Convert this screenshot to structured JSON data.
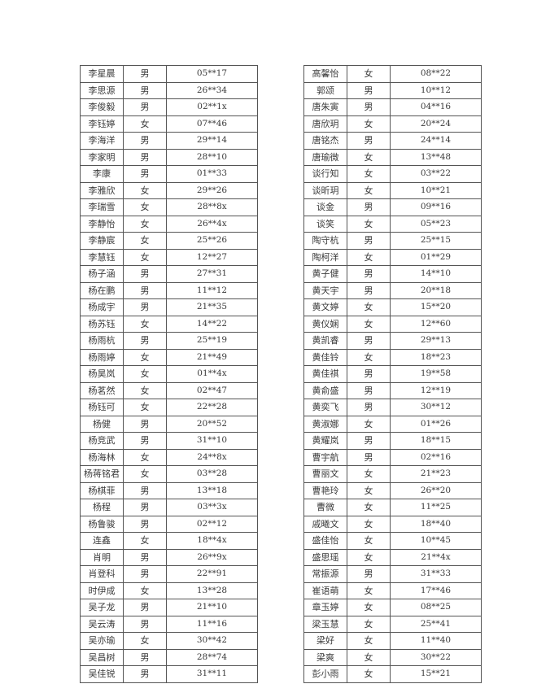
{
  "left_table": [
    [
      "李星晨",
      "男",
      "05**17"
    ],
    [
      "李思源",
      "男",
      "26**34"
    ],
    [
      "李俊毅",
      "男",
      "02**1x"
    ],
    [
      "李钰婷",
      "女",
      "07**46"
    ],
    [
      "李海洋",
      "男",
      "29**14"
    ],
    [
      "李家明",
      "男",
      "28**10"
    ],
    [
      "李康",
      "男",
      "01**33"
    ],
    [
      "李雅欣",
      "女",
      "29**26"
    ],
    [
      "李瑞雪",
      "女",
      "28**8x"
    ],
    [
      "李静怡",
      "女",
      "26**4x"
    ],
    [
      "李静宸",
      "女",
      "25**26"
    ],
    [
      "李慧钰",
      "女",
      "12**27"
    ],
    [
      "杨子涵",
      "男",
      "27**31"
    ],
    [
      "杨在鹏",
      "男",
      "11**12"
    ],
    [
      "杨成宇",
      "男",
      "21**35"
    ],
    [
      "杨苏钰",
      "女",
      "14**22"
    ],
    [
      "杨雨杭",
      "男",
      "25**19"
    ],
    [
      "杨雨婷",
      "女",
      "21**49"
    ],
    [
      "杨昊岚",
      "女",
      "01**4x"
    ],
    [
      "杨茗然",
      "女",
      "02**47"
    ],
    [
      "杨钰可",
      "女",
      "22**28"
    ],
    [
      "杨健",
      "男",
      "20**52"
    ],
    [
      "杨竞武",
      "男",
      "31**10"
    ],
    [
      "杨海林",
      "女",
      "24**8x"
    ],
    [
      "杨蒋铭君",
      "女",
      "03**28"
    ],
    [
      "杨棋菲",
      "男",
      "13**18"
    ],
    [
      "杨程",
      "男",
      "03**3x"
    ],
    [
      "杨鲁骏",
      "男",
      "02**12"
    ],
    [
      "连鑫",
      "女",
      "18**4x"
    ],
    [
      "肖明",
      "男",
      "26**9x"
    ],
    [
      "肖登科",
      "男",
      "22**91"
    ],
    [
      "时伊成",
      "女",
      "13**28"
    ],
    [
      "吴子龙",
      "男",
      "21**10"
    ],
    [
      "吴云涛",
      "男",
      "11**16"
    ],
    [
      "吴亦瑜",
      "女",
      "30**42"
    ],
    [
      "吴昌树",
      "男",
      "28**74"
    ],
    [
      "吴佳锐",
      "男",
      "31**11"
    ]
  ],
  "right_table": [
    [
      "高馨怡",
      "女",
      "08**22"
    ],
    [
      "郭颂",
      "男",
      "10**12"
    ],
    [
      "唐朱寅",
      "男",
      "04**16"
    ],
    [
      "唐欣玥",
      "女",
      "20**24"
    ],
    [
      "唐铭杰",
      "男",
      "24**14"
    ],
    [
      "唐瑜微",
      "女",
      "13**48"
    ],
    [
      "谈行知",
      "女",
      "03**22"
    ],
    [
      "谈昕玥",
      "女",
      "10**21"
    ],
    [
      "谈金",
      "男",
      "09**16"
    ],
    [
      "谈笑",
      "女",
      "05**23"
    ],
    [
      "陶守杭",
      "男",
      "25**15"
    ],
    [
      "陶柯洋",
      "女",
      "01**29"
    ],
    [
      "黄子健",
      "男",
      "14**10"
    ],
    [
      "黄天宇",
      "男",
      "20**18"
    ],
    [
      "黄文婷",
      "女",
      "15**20"
    ],
    [
      "黄仪娴",
      "女",
      "12**60"
    ],
    [
      "黄凯睿",
      "男",
      "29**13"
    ],
    [
      "黄佳铃",
      "女",
      "18**23"
    ],
    [
      "黄佳祺",
      "男",
      "19**58"
    ],
    [
      "黄俞盛",
      "男",
      "12**19"
    ],
    [
      "黄奕飞",
      "男",
      "30**12"
    ],
    [
      "黄淑娜",
      "女",
      "01**26"
    ],
    [
      "黄耀岚",
      "男",
      "18**15"
    ],
    [
      "曹宇航",
      "男",
      "02**16"
    ],
    [
      "曹丽文",
      "女",
      "21**23"
    ],
    [
      "曹艳玲",
      "女",
      "26**20"
    ],
    [
      "曹微",
      "女",
      "11**25"
    ],
    [
      "戚曦文",
      "女",
      "18**40"
    ],
    [
      "盛佳怡",
      "女",
      "10**45"
    ],
    [
      "盛思瑶",
      "女",
      "21**4x"
    ],
    [
      "常振源",
      "男",
      "31**33"
    ],
    [
      "崔语萌",
      "女",
      "17**46"
    ],
    [
      "章玉婷",
      "女",
      "08**25"
    ],
    [
      "梁玉慧",
      "女",
      "25**41"
    ],
    [
      "梁好",
      "女",
      "11**40"
    ],
    [
      "梁爽",
      "女",
      "30**22"
    ],
    [
      "彭小雨",
      "女",
      "15**21"
    ]
  ]
}
